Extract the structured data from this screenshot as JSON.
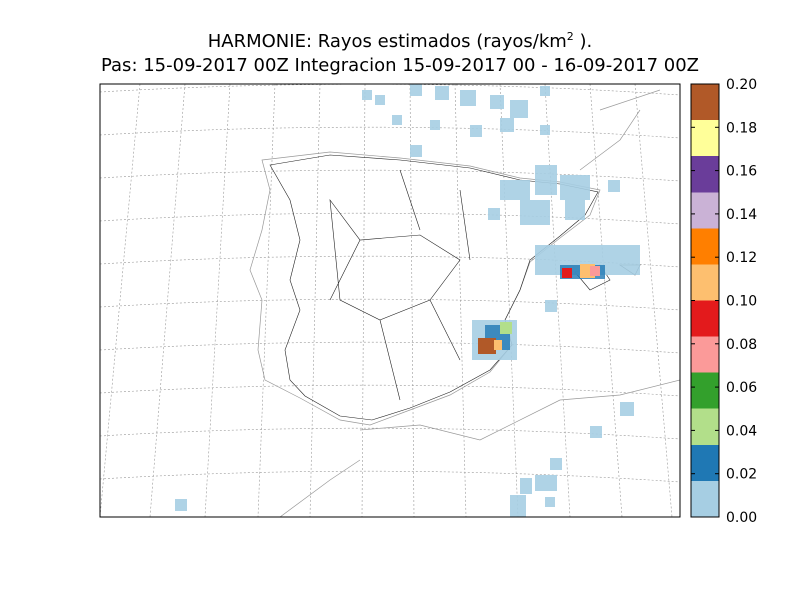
{
  "header": {
    "title": "HARMONIE: Rayos estimados  (rayos/km",
    "title_sup": "2",
    "title_end": " ).",
    "subtitle": "Pas: 15-09-2017 00Z Integracion 15-09-2017 00 - 16-09-2017 00Z"
  },
  "colorbar": {
    "lim": [
      0,
      0.2
    ],
    "ticks": [
      {
        "value": 0,
        "label": "0.00"
      },
      {
        "value": 0.02,
        "label": "0.02"
      },
      {
        "value": 0.04,
        "label": "0.04"
      },
      {
        "value": 0.06,
        "label": "0.06"
      },
      {
        "value": 0.08,
        "label": "0.08"
      },
      {
        "value": 0.1,
        "label": "0.10"
      },
      {
        "value": 0.12,
        "label": "0.12"
      },
      {
        "value": 0.14,
        "label": "0.14"
      },
      {
        "value": 0.16,
        "label": "0.16"
      },
      {
        "value": 0.18,
        "label": "0.18"
      },
      {
        "value": 0.2,
        "label": "0.20"
      }
    ],
    "colors": [
      "#a6cee3",
      "#1f78b4",
      "#b2df8a",
      "#33a02c",
      "#fb9a99",
      "#e31a1c",
      "#fdbf6f",
      "#ff7f00",
      "#cab2d6",
      "#6a3d9a",
      "#ffff99",
      "#b15928"
    ]
  }
}
